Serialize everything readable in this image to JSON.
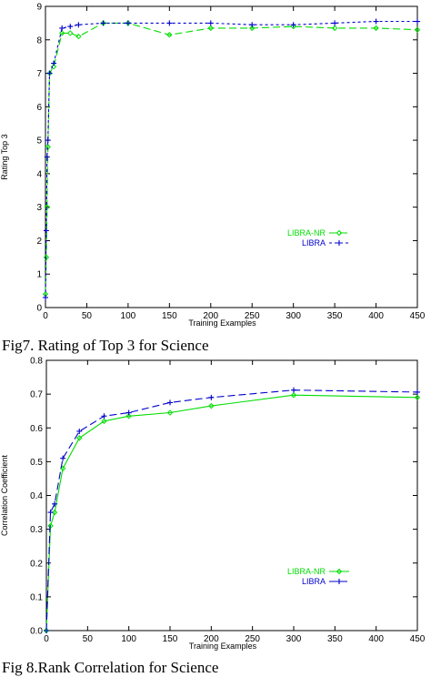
{
  "chart_data": [
    {
      "type": "line",
      "title": "",
      "caption": "Fig7. Rating of Top 3 for Science",
      "xlabel": "Training Examples",
      "ylabel": "Rating Top 3",
      "xlim": [
        0,
        450
      ],
      "ylim": [
        0,
        9
      ],
      "xticks": [
        0,
        50,
        100,
        150,
        200,
        250,
        300,
        350,
        400,
        450
      ],
      "yticks": [
        0,
        1,
        2,
        3,
        4,
        5,
        6,
        7,
        8,
        9
      ],
      "legend_position": "bottom-right",
      "series": [
        {
          "name": "LIBRA-NR",
          "color": "#00dd00",
          "style": "dashed",
          "marker": "diamond",
          "x": [
            0,
            1,
            2,
            3,
            5,
            10,
            20,
            30,
            40,
            70,
            100,
            150,
            200,
            250,
            300,
            350,
            400,
            450
          ],
          "y": [
            0.4,
            1.5,
            3.0,
            4.8,
            7.0,
            7.2,
            8.2,
            8.2,
            8.1,
            8.5,
            8.5,
            8.15,
            8.35,
            8.35,
            8.4,
            8.35,
            8.35,
            8.3
          ]
        },
        {
          "name": "LIBRA",
          "color": "#0000cc",
          "style": "dotted",
          "marker": "plus",
          "x": [
            0,
            1,
            2,
            3,
            5,
            10,
            20,
            30,
            40,
            70,
            100,
            150,
            200,
            250,
            300,
            350,
            400,
            450
          ],
          "y": [
            0.3,
            2.3,
            4.5,
            5.0,
            7.0,
            7.3,
            8.35,
            8.4,
            8.45,
            8.5,
            8.5,
            8.5,
            8.5,
            8.45,
            8.45,
            8.5,
            8.55,
            8.55
          ]
        }
      ]
    },
    {
      "type": "line",
      "title": "",
      "caption": "Fig 8.Rank Correlation for Science",
      "xlabel": "Training Examples",
      "ylabel": "Correlation Coefficient",
      "xlim": [
        0,
        450
      ],
      "ylim": [
        0,
        0.8
      ],
      "xticks": [
        0,
        50,
        100,
        150,
        200,
        250,
        300,
        350,
        400,
        450
      ],
      "yticks": [
        0,
        0.1,
        0.2,
        0.3,
        0.4,
        0.5,
        0.6,
        0.7,
        0.8
      ],
      "legend_position": "bottom-right",
      "series": [
        {
          "name": "LIBRA-NR",
          "color": "#00dd00",
          "style": "solid",
          "marker": "diamond",
          "x": [
            0,
            5,
            10,
            20,
            40,
            70,
            100,
            150,
            200,
            300,
            450
          ],
          "y": [
            0.0,
            0.31,
            0.35,
            0.48,
            0.57,
            0.62,
            0.635,
            0.645,
            0.665,
            0.697,
            0.69
          ]
        },
        {
          "name": "LIBRA",
          "color": "#0000cc",
          "style": "dashed",
          "marker": "plus",
          "x": [
            0,
            5,
            10,
            20,
            40,
            70,
            100,
            150,
            200,
            300,
            450
          ],
          "y": [
            0.0,
            0.35,
            0.375,
            0.51,
            0.59,
            0.635,
            0.645,
            0.675,
            0.69,
            0.712,
            0.706
          ]
        }
      ]
    }
  ]
}
